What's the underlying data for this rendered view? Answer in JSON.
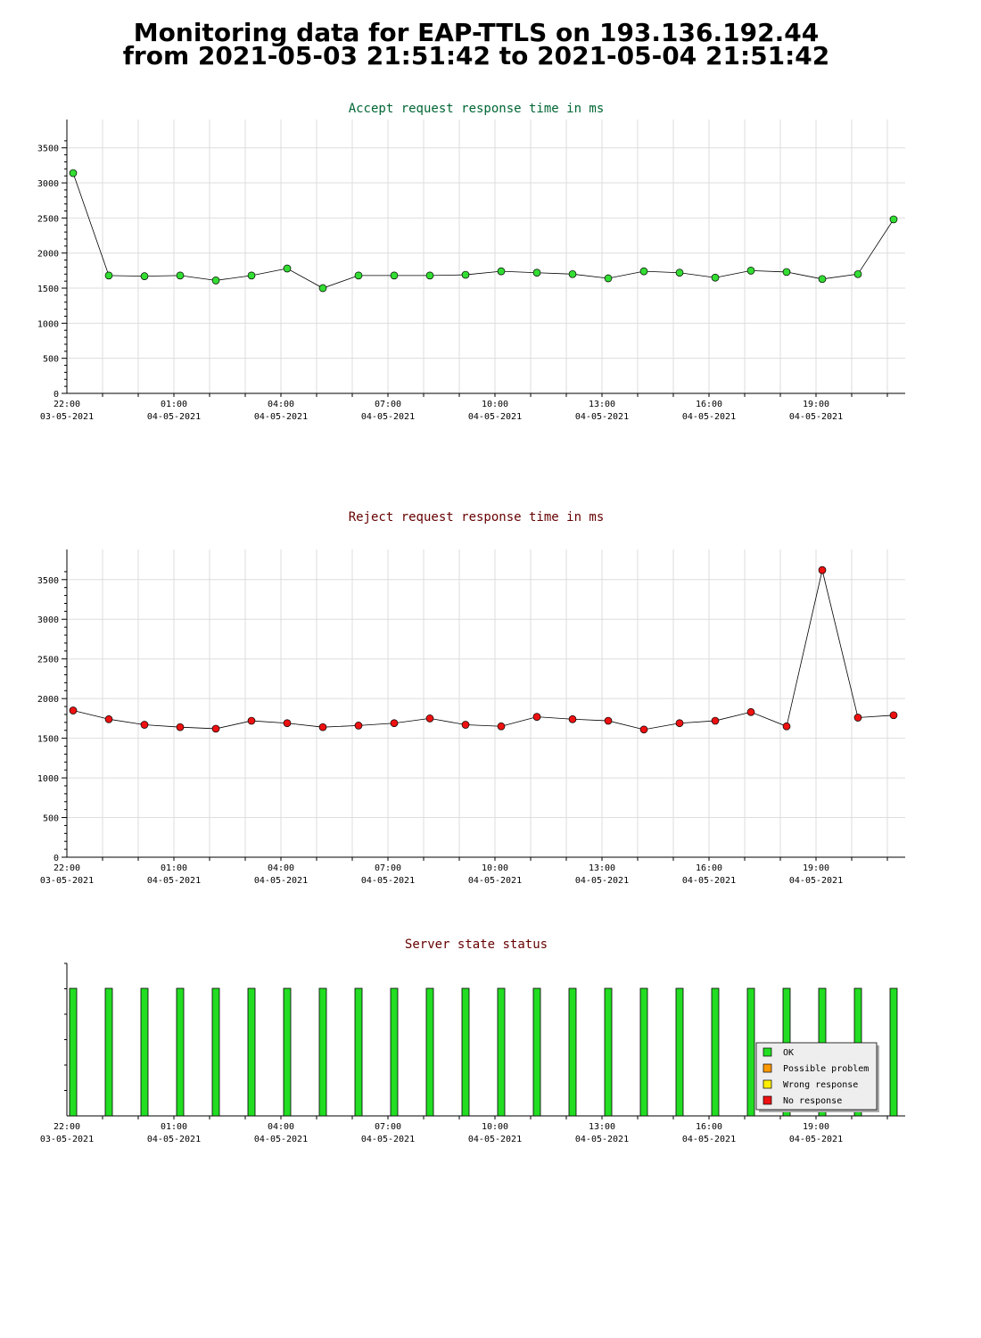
{
  "page": {
    "title_line1": "Monitoring data for EAP-TTLS on 193.136.192.44",
    "title_line2": "from 2021-05-03 21:51:42 to 2021-05-04 21:51:42"
  },
  "colors": {
    "accept_title": "#006633",
    "reject_title": "#660000",
    "status_title": "#660000",
    "accept_marker": "#33dd33",
    "reject_marker": "#ee1111",
    "grid": "#dddddd",
    "ok": "#22dd22",
    "possible_problem": "#ff9900",
    "wrong_response": "#ffee00",
    "no_response": "#ee1111"
  },
  "chart_data": [
    {
      "type": "line",
      "title": "Accept request response time in ms",
      "x_tick_labels": [
        {
          "time": "22:00",
          "date": "03-05-2021"
        },
        {
          "time": "01:00",
          "date": "04-05-2021"
        },
        {
          "time": "04:00",
          "date": "04-05-2021"
        },
        {
          "time": "07:00",
          "date": "04-05-2021"
        },
        {
          "time": "10:00",
          "date": "04-05-2021"
        },
        {
          "time": "13:00",
          "date": "04-05-2021"
        },
        {
          "time": "16:00",
          "date": "04-05-2021"
        },
        {
          "time": "19:00",
          "date": "04-05-2021"
        }
      ],
      "y_ticks": [
        0,
        500,
        1000,
        1500,
        2000,
        2500,
        3000,
        3500
      ],
      "ylim": [
        0,
        3700
      ],
      "grid": true,
      "series": [
        {
          "values": [
            3140,
            1680,
            1670,
            1680,
            1610,
            1680,
            1780,
            1500,
            1680,
            1680,
            1680,
            1690,
            1740,
            1720,
            1700,
            1640,
            1740,
            1720,
            1650,
            1750,
            1730,
            1630,
            1700,
            2480
          ]
        }
      ]
    },
    {
      "type": "line",
      "title": "Reject request response time in ms",
      "x_tick_labels": [
        {
          "time": "22:00",
          "date": "03-05-2021"
        },
        {
          "time": "01:00",
          "date": "04-05-2021"
        },
        {
          "time": "04:00",
          "date": "04-05-2021"
        },
        {
          "time": "07:00",
          "date": "04-05-2021"
        },
        {
          "time": "10:00",
          "date": "04-05-2021"
        },
        {
          "time": "13:00",
          "date": "04-05-2021"
        },
        {
          "time": "16:00",
          "date": "04-05-2021"
        },
        {
          "time": "19:00",
          "date": "04-05-2021"
        }
      ],
      "y_ticks": [
        0,
        500,
        1000,
        1500,
        2000,
        2500,
        3000,
        3500
      ],
      "ylim": [
        0,
        3700
      ],
      "grid": true,
      "series": [
        {
          "values": [
            1850,
            1740,
            1670,
            1640,
            1620,
            1720,
            1690,
            1640,
            1660,
            1690,
            1750,
            1670,
            1650,
            1770,
            1740,
            1720,
            1610,
            1690,
            1720,
            1830,
            1650,
            3620,
            1760,
            1790
          ]
        }
      ]
    },
    {
      "type": "bar",
      "title": "Server state status",
      "x_tick_labels": [
        {
          "time": "22:00",
          "date": "03-05-2021"
        },
        {
          "time": "01:00",
          "date": "04-05-2021"
        },
        {
          "time": "04:00",
          "date": "04-05-2021"
        },
        {
          "time": "07:00",
          "date": "04-05-2021"
        },
        {
          "time": "10:00",
          "date": "04-05-2021"
        },
        {
          "time": "13:00",
          "date": "04-05-2021"
        },
        {
          "time": "16:00",
          "date": "04-05-2021"
        },
        {
          "time": "19:00",
          "date": "04-05-2021"
        }
      ],
      "states": [
        "OK",
        "OK",
        "OK",
        "OK",
        "OK",
        "OK",
        "OK",
        "OK",
        "OK",
        "OK",
        "OK",
        "OK",
        "OK",
        "OK",
        "OK",
        "OK",
        "OK",
        "OK",
        "OK",
        "OK",
        "OK",
        "OK",
        "OK",
        "OK"
      ],
      "legend_position": "bottom-right",
      "legend": [
        {
          "label": "OK",
          "color_key": "ok"
        },
        {
          "label": "Possible problem",
          "color_key": "possible_problem"
        },
        {
          "label": "Wrong response",
          "color_key": "wrong_response"
        },
        {
          "label": "No response",
          "color_key": "no_response"
        }
      ]
    }
  ]
}
